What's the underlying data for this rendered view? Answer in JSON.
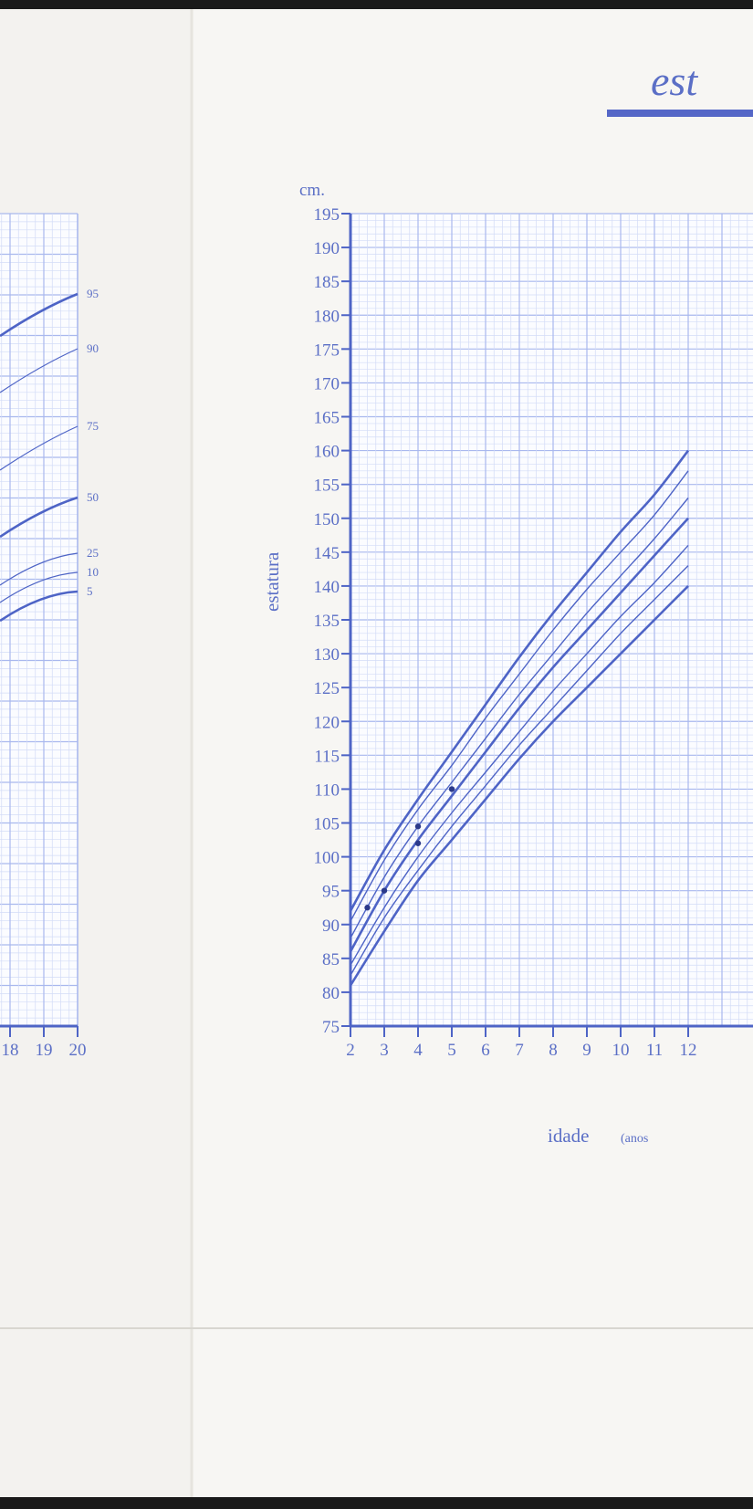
{
  "header": {
    "title_fragment": "est"
  },
  "colors": {
    "paper": "#f7f6f3",
    "grid_minor": "#d3dcf7",
    "grid_major": "#a9b8ee",
    "curve": "#4e64c6",
    "text": "#5b6fc6",
    "header_bar": "#5567c7",
    "dark_frame": "#1a1a1a"
  },
  "chart_data": [
    {
      "type": "line",
      "title": "",
      "xlabel": "",
      "ylabel": "",
      "partial_visible": true,
      "xlim": [
        null,
        20
      ],
      "x_ticks_visible": [
        "18",
        "19",
        "20"
      ],
      "percentile_labels": [
        "95",
        "90",
        "75",
        "50",
        "25",
        "10",
        "5"
      ],
      "grid": true
    },
    {
      "type": "line",
      "title": "",
      "y_unit": "cm.",
      "ylabel": "estatura",
      "xlabel": "idade",
      "xlabel_suffix": "(anos",
      "xlim": [
        2,
        12
      ],
      "ylim": [
        75,
        195
      ],
      "x_ticks": [
        "2",
        "3",
        "4",
        "5",
        "6",
        "7",
        "8",
        "9",
        "10",
        "11",
        "12"
      ],
      "y_ticks": [
        "195",
        "190",
        "185",
        "180",
        "175",
        "170",
        "165",
        "160",
        "155",
        "150",
        "145",
        "140",
        "135",
        "130",
        "125",
        "120",
        "115",
        "110",
        "105",
        "100",
        "95",
        "90",
        "85",
        "80",
        "75"
      ],
      "grid": true,
      "series": [
        {
          "percentile": 95,
          "x": [
            2,
            3,
            4,
            5,
            6,
            7,
            8,
            9,
            10,
            11,
            12
          ],
          "values": [
            92,
            101,
            108.5,
            115.5,
            122.5,
            129.5,
            136,
            142,
            148,
            153.5,
            160
          ]
        },
        {
          "percentile": 90,
          "x": [
            2,
            3,
            4,
            5,
            6,
            7,
            8,
            9,
            10,
            11,
            12
          ],
          "values": [
            90.5,
            99.5,
            107,
            113.5,
            120.5,
            127,
            133.5,
            139.5,
            145,
            150.5,
            157
          ]
        },
        {
          "percentile": 75,
          "x": [
            2,
            3,
            4,
            5,
            6,
            7,
            8,
            9,
            10,
            11,
            12
          ],
          "values": [
            88,
            97,
            104.5,
            111,
            117.5,
            124,
            130,
            136,
            141.5,
            147,
            153
          ]
        },
        {
          "percentile": 50,
          "x": [
            2,
            3,
            4,
            5,
            6,
            7,
            8,
            9,
            10,
            11,
            12
          ],
          "values": [
            86,
            95,
            102.5,
            109,
            115.5,
            122,
            128,
            133.5,
            139,
            144.5,
            150
          ]
        },
        {
          "percentile": 25,
          "x": [
            2,
            3,
            4,
            5,
            6,
            7,
            8,
            9,
            10,
            11,
            12
          ],
          "values": [
            84,
            92.5,
            100,
            106.5,
            112.5,
            118.5,
            124.5,
            130,
            135.5,
            140.5,
            146
          ]
        },
        {
          "percentile": 10,
          "x": [
            2,
            3,
            4,
            5,
            6,
            7,
            8,
            9,
            10,
            11,
            12
          ],
          "values": [
            82.5,
            91,
            98,
            104.5,
            110.5,
            116.5,
            122,
            127.5,
            133,
            138,
            143
          ]
        },
        {
          "percentile": 5,
          "x": [
            2,
            3,
            4,
            5,
            6,
            7,
            8,
            9,
            10,
            11,
            12
          ],
          "values": [
            81,
            89,
            96.5,
            102.5,
            108.5,
            114.5,
            120,
            125,
            130,
            135,
            140
          ]
        }
      ],
      "points": [
        {
          "x": 2.5,
          "y": 92.5
        },
        {
          "x": 3.0,
          "y": 95
        },
        {
          "x": 4.0,
          "y": 104.5
        },
        {
          "x": 4.0,
          "y": 102
        },
        {
          "x": 5.0,
          "y": 110
        }
      ]
    }
  ]
}
